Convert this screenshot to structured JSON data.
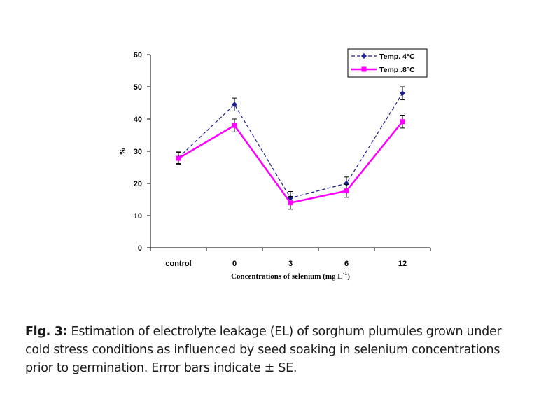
{
  "chart_data": {
    "type": "line",
    "categories": [
      "control",
      "0",
      "3",
      "6",
      "12"
    ],
    "series": [
      {
        "name": "Temp. 4°C",
        "values": [
          28,
          44.5,
          15.5,
          20,
          48
        ],
        "errors": [
          1.8,
          2,
          2,
          2,
          2
        ],
        "color": "#1f1f8f",
        "style": "dashed",
        "marker": "diamond"
      },
      {
        "name": "Temp .8°C",
        "values": [
          27.8,
          38,
          14,
          17.7,
          39.2
        ],
        "errors": [
          1.8,
          2,
          2,
          2,
          2
        ],
        "color": "#ff00ff",
        "style": "solid",
        "marker": "square"
      }
    ],
    "ylim": [
      0,
      60
    ],
    "yticks": [
      0,
      10,
      20,
      30,
      40,
      50,
      60
    ],
    "ylabel": "%",
    "xlabel": "Concentrations of selenium (mg L",
    "xlabel_sup": "-1",
    "xlabel_end": ")",
    "legend_position": "top-right"
  },
  "caption": {
    "label": "Fig. 3:",
    "text": " Estimation of electrolyte leakage (EL) of sorghum plumules grown under cold stress conditions as influenced by seed soaking in selenium concentrations prior to germination. Error bars indicate ± SE."
  }
}
